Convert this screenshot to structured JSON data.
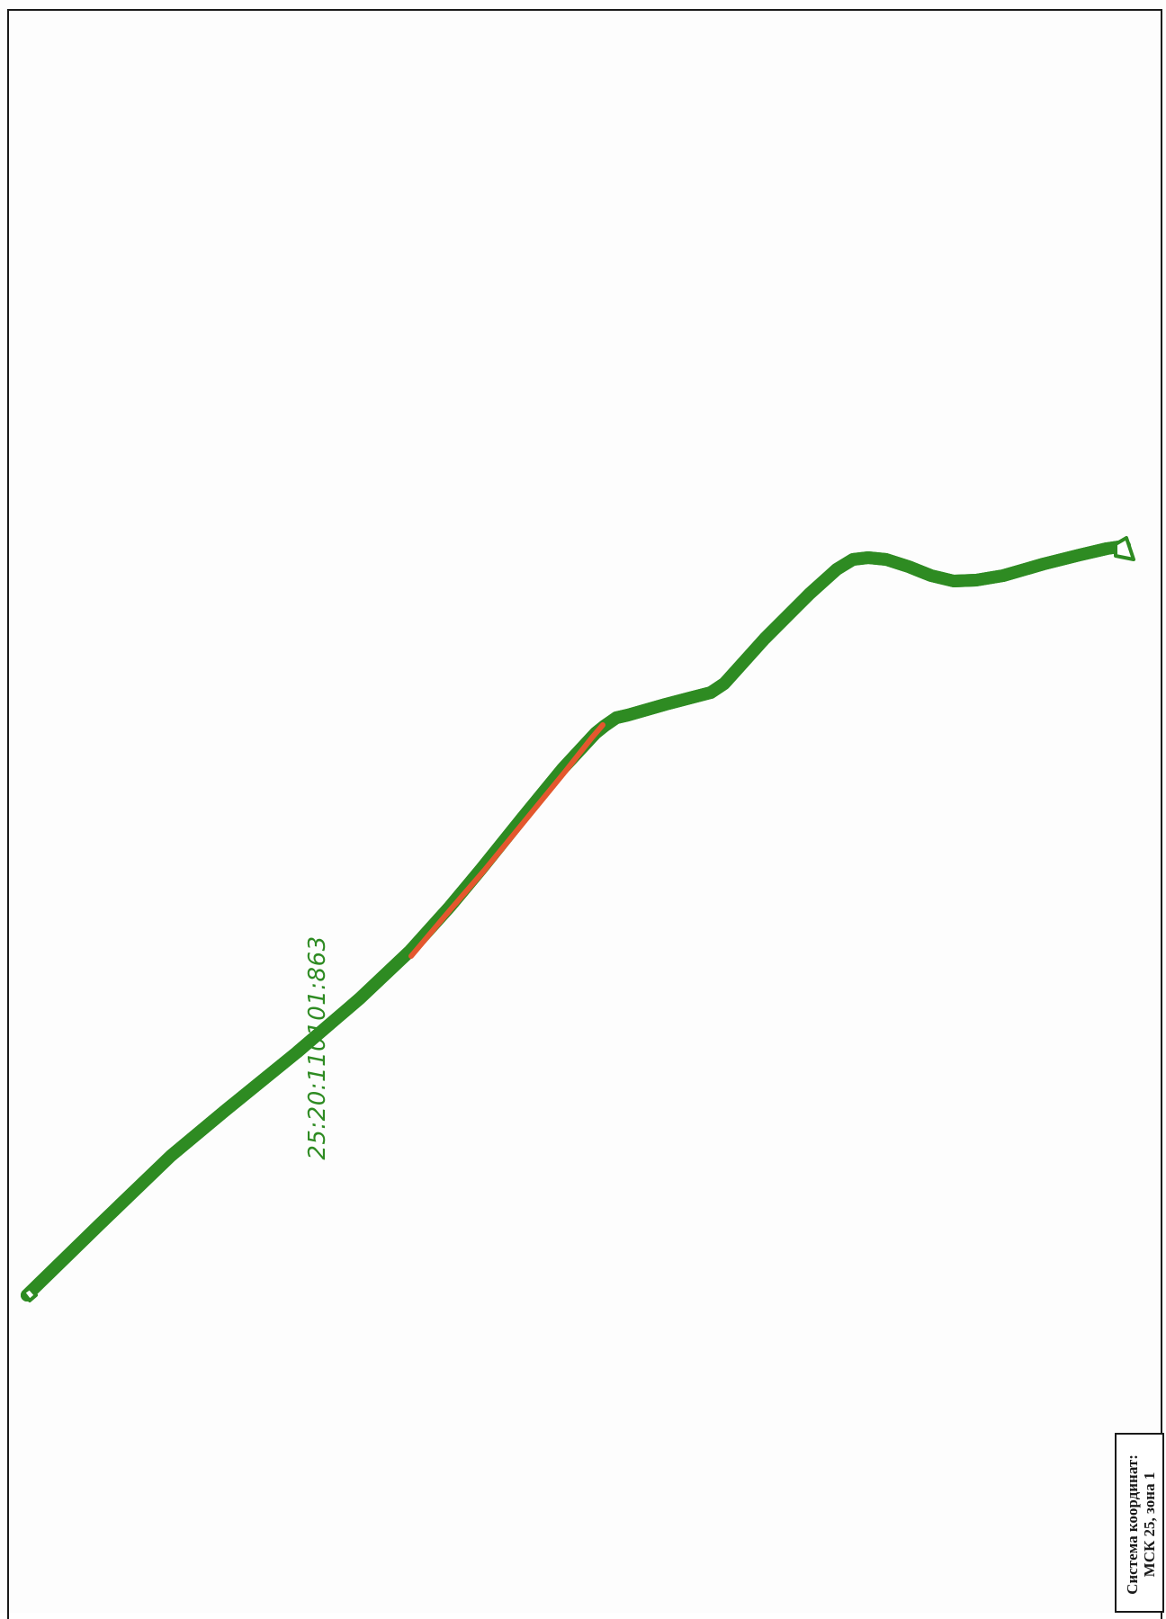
{
  "parcel": {
    "cadastral_number": "25:20:110101:863",
    "outline_color": "#2e8b22",
    "highlight_color": "#e4572e"
  },
  "legend": {
    "line1": "Система координат:",
    "line2": "МСК 25, зона 1"
  }
}
